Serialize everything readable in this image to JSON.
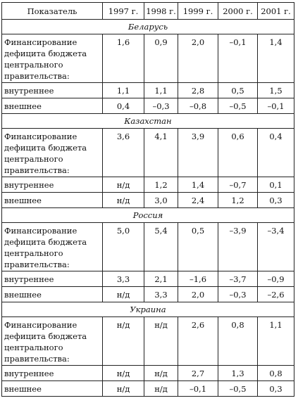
{
  "header": [
    "Показатель",
    "1997 г.",
    "1998 г.",
    "1999 г.",
    "2000 г.",
    "2001 г."
  ],
  "sections": [
    {
      "country": "Беларусь",
      "rows": [
        {
          "label": "Финансирование дефицита бюджета центрального правительства:",
          "values": [
            "1,6",
            "0,9",
            "2,0",
            "–0,1",
            "1,4"
          ]
        },
        {
          "label": "внутреннее",
          "values": [
            "1,1",
            "1,1",
            "2,8",
            "0,5",
            "1,5"
          ]
        },
        {
          "label": "внешнее",
          "values": [
            "0,4",
            "–0,3",
            "–0,8",
            "–0,5",
            "–0,1"
          ]
        }
      ]
    },
    {
      "country": "Казахстан",
      "rows": [
        {
          "label": "Финансирование дефицита бюджета центрального правительства:",
          "values": [
            "3,6",
            "4,1",
            "3,9",
            "0,6",
            "0,4"
          ]
        },
        {
          "label": "внутреннее",
          "values": [
            "н/д",
            "1,2",
            "1,4",
            "–0,7",
            "0,1"
          ]
        },
        {
          "label": "внешнее",
          "values": [
            "н/д",
            "3,0",
            "2,4",
            "1,2",
            "0,3"
          ]
        }
      ]
    },
    {
      "country": "Россия",
      "rows": [
        {
          "label": "Финансирование дефицита бюджета центрального правительства:",
          "values": [
            "5,0",
            "5,4",
            "0,5",
            "–3,9",
            "–3,4"
          ]
        },
        {
          "label": "внутреннее",
          "values": [
            "3,3",
            "2,1",
            "–1,6",
            "–3,7",
            "–0,9"
          ]
        },
        {
          "label": "внешнее",
          "values": [
            "н/д",
            "3,3",
            "2,0",
            "–0,3",
            "–2,6"
          ]
        }
      ]
    },
    {
      "country": "Украина",
      "rows": [
        {
          "label": "Финансирование дефицита бюджета центрального правительства:",
          "values": [
            "н/д",
            "н/д",
            "2,6",
            "0,8",
            "1,1"
          ]
        },
        {
          "label": "внутреннее",
          "values": [
            "н/д",
            "н/д",
            "2,7",
            "1,3",
            "0,8"
          ]
        },
        {
          "label": "внешнее",
          "values": [
            "н/д",
            "н/д",
            "–0,1",
            "–0,5",
            "0,3"
          ]
        }
      ]
    }
  ]
}
